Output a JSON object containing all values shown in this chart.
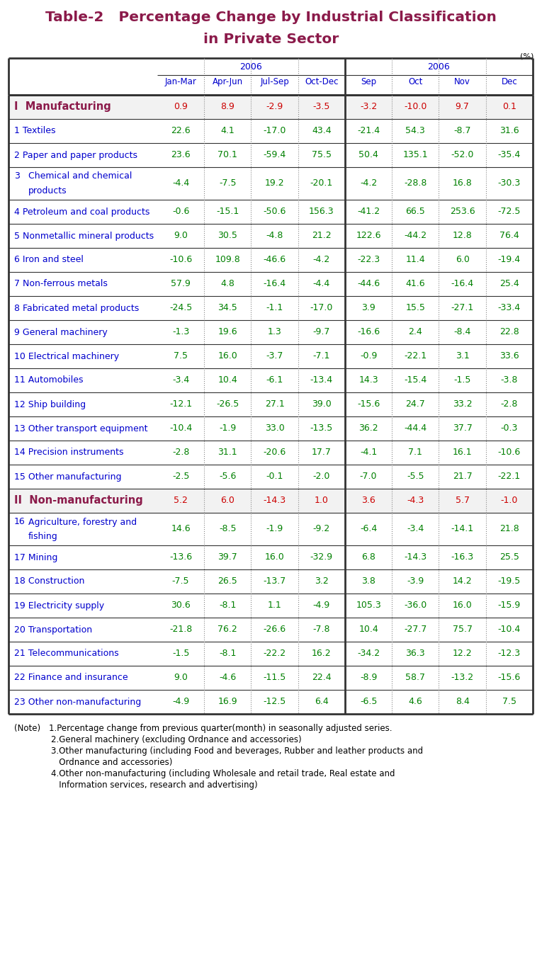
{
  "title_line1": "Table-2   Percentage Change by Industrial Classification",
  "title_line2": "in Private Sector",
  "title_color": "#8B1A4A",
  "unit_label": "(%)",
  "col_headers_left_year": "2006",
  "col_headers_right_year": "2006",
  "col_headers_left": [
    "Jan-Mar",
    "Apr-Jun",
    "Jul-Sep",
    "Oct-Dec"
  ],
  "col_headers_right": [
    "Sep",
    "Oct",
    "Nov",
    "Dec"
  ],
  "row_label_color": "#0000CD",
  "data_color": "#008000",
  "section_data_color": "#CC0000",
  "header_color": "#0000CD",
  "section_label_color": "#8B1A4A",
  "bg_color": "#FFFFFF",
  "line_color": "#333333",
  "dot_color": "#888888",
  "rows": [
    {
      "label": "I  Manufacturing",
      "num": "",
      "is_section": true,
      "tall": false,
      "values": [
        "0.9",
        "8.9",
        "-2.9",
        "-3.5",
        "-3.2",
        "-10.0",
        "9.7",
        "0.1"
      ]
    },
    {
      "label": "Textiles",
      "num": "1",
      "is_section": false,
      "tall": false,
      "values": [
        "22.6",
        "4.1",
        "-17.0",
        "43.4",
        "-21.4",
        "54.3",
        "-8.7",
        "31.6"
      ]
    },
    {
      "label": "Paper and paper products",
      "num": "2",
      "is_section": false,
      "tall": false,
      "values": [
        "23.6",
        "70.1",
        "-59.4",
        "75.5",
        "50.4",
        "135.1",
        "-52.0",
        "-35.4"
      ]
    },
    {
      "label": "Chemical and chemical\nproducts",
      "num": "3",
      "is_section": false,
      "tall": true,
      "values": [
        "-4.4",
        "-7.5",
        "19.2",
        "-20.1",
        "-4.2",
        "-28.8",
        "16.8",
        "-30.3"
      ]
    },
    {
      "label": "Petroleum and coal products",
      "num": "4",
      "is_section": false,
      "tall": false,
      "values": [
        "-0.6",
        "-15.1",
        "-50.6",
        "156.3",
        "-41.2",
        "66.5",
        "253.6",
        "-72.5"
      ]
    },
    {
      "label": "Nonmetallic mineral products",
      "num": "5",
      "is_section": false,
      "tall": false,
      "values": [
        "9.0",
        "30.5",
        "-4.8",
        "21.2",
        "122.6",
        "-44.2",
        "12.8",
        "76.4"
      ]
    },
    {
      "label": "Iron and steel",
      "num": "6",
      "is_section": false,
      "tall": false,
      "values": [
        "-10.6",
        "109.8",
        "-46.6",
        "-4.2",
        "-22.3",
        "11.4",
        "6.0",
        "-19.4"
      ]
    },
    {
      "label": "Non-ferrous metals",
      "num": "7",
      "is_section": false,
      "tall": false,
      "values": [
        "57.9",
        "4.8",
        "-16.4",
        "-4.4",
        "-44.6",
        "41.6",
        "-16.4",
        "25.4"
      ]
    },
    {
      "label": "Fabricated metal products",
      "num": "8",
      "is_section": false,
      "tall": false,
      "values": [
        "-24.5",
        "34.5",
        "-1.1",
        "-17.0",
        "3.9",
        "15.5",
        "-27.1",
        "-33.4"
      ]
    },
    {
      "label": "General machinery",
      "num": "9",
      "is_section": false,
      "tall": false,
      "values": [
        "-1.3",
        "19.6",
        "1.3",
        "-9.7",
        "-16.6",
        "2.4",
        "-8.4",
        "22.8"
      ]
    },
    {
      "label": "Electrical machinery",
      "num": "10",
      "is_section": false,
      "tall": false,
      "values": [
        "7.5",
        "16.0",
        "-3.7",
        "-7.1",
        "-0.9",
        "-22.1",
        "3.1",
        "33.6"
      ]
    },
    {
      "label": "Automobiles",
      "num": "11",
      "is_section": false,
      "tall": false,
      "values": [
        "-3.4",
        "10.4",
        "-6.1",
        "-13.4",
        "14.3",
        "-15.4",
        "-1.5",
        "-3.8"
      ]
    },
    {
      "label": "Ship building",
      "num": "12",
      "is_section": false,
      "tall": false,
      "values": [
        "-12.1",
        "-26.5",
        "27.1",
        "39.0",
        "-15.6",
        "24.7",
        "33.2",
        "-2.8"
      ]
    },
    {
      "label": "Other transport equipment",
      "num": "13",
      "is_section": false,
      "tall": false,
      "values": [
        "-10.4",
        "-1.9",
        "33.0",
        "-13.5",
        "36.2",
        "-44.4",
        "37.7",
        "-0.3"
      ]
    },
    {
      "label": "Precision instruments",
      "num": "14",
      "is_section": false,
      "tall": false,
      "values": [
        "-2.8",
        "31.1",
        "-20.6",
        "17.7",
        "-4.1",
        "7.1",
        "16.1",
        "-10.6"
      ]
    },
    {
      "label": "Other manufacturing",
      "num": "15",
      "is_section": false,
      "tall": false,
      "values": [
        "-2.5",
        "-5.6",
        "-0.1",
        "-2.0",
        "-7.0",
        "-5.5",
        "21.7",
        "-22.1"
      ]
    },
    {
      "label": "II  Non-manufacturing",
      "num": "",
      "is_section": true,
      "tall": false,
      "values": [
        "5.2",
        "6.0",
        "-14.3",
        "1.0",
        "3.6",
        "-4.3",
        "5.7",
        "-1.0"
      ]
    },
    {
      "label": "Agriculture, forestry and\nfishing",
      "num": "16",
      "is_section": false,
      "tall": true,
      "values": [
        "14.6",
        "-8.5",
        "-1.9",
        "-9.2",
        "-6.4",
        "-3.4",
        "-14.1",
        "21.8"
      ]
    },
    {
      "label": "Mining",
      "num": "17",
      "is_section": false,
      "tall": false,
      "values": [
        "-13.6",
        "39.7",
        "16.0",
        "-32.9",
        "6.8",
        "-14.3",
        "-16.3",
        "25.5"
      ]
    },
    {
      "label": "Construction",
      "num": "18",
      "is_section": false,
      "tall": false,
      "values": [
        "-7.5",
        "26.5",
        "-13.7",
        "3.2",
        "3.8",
        "-3.9",
        "14.2",
        "-19.5"
      ]
    },
    {
      "label": "Electricity supply",
      "num": "19",
      "is_section": false,
      "tall": false,
      "values": [
        "30.6",
        "-8.1",
        "1.1",
        "-4.9",
        "105.3",
        "-36.0",
        "16.0",
        "-15.9"
      ]
    },
    {
      "label": "Transportation",
      "num": "20",
      "is_section": false,
      "tall": false,
      "values": [
        "-21.8",
        "76.2",
        "-26.6",
        "-7.8",
        "10.4",
        "-27.7",
        "75.7",
        "-10.4"
      ]
    },
    {
      "label": "Telecommunications",
      "num": "21",
      "is_section": false,
      "tall": false,
      "values": [
        "-1.5",
        "-8.1",
        "-22.2",
        "16.2",
        "-34.2",
        "36.3",
        "12.2",
        "-12.3"
      ]
    },
    {
      "label": "Finance and insurance",
      "num": "22",
      "is_section": false,
      "tall": false,
      "values": [
        "9.0",
        "-4.6",
        "-11.5",
        "22.4",
        "-8.9",
        "58.7",
        "-13.2",
        "-15.6"
      ]
    },
    {
      "label": "Other non-manufacturing",
      "num": "23",
      "is_section": false,
      "tall": false,
      "values": [
        "-4.9",
        "16.9",
        "-12.5",
        "6.4",
        "-6.5",
        "4.6",
        "8.4",
        "7.5"
      ]
    }
  ],
  "notes": [
    [
      "(Note)",
      "1.Percentage change from previous quarter(month) in seasonally adjusted series."
    ],
    [
      "",
      "2.General machinery (excluding Ordnance and accessories)"
    ],
    [
      "",
      "3.Other manufacturing (including Food and beverages, Rubber and leather products and"
    ],
    [
      "",
      "   Ordnance and accessories)"
    ],
    [
      "",
      "4.Other non-manufacturing (including Wholesale and retail trade, Real estate and"
    ],
    [
      "",
      "   Information services, research and advertising)"
    ]
  ]
}
